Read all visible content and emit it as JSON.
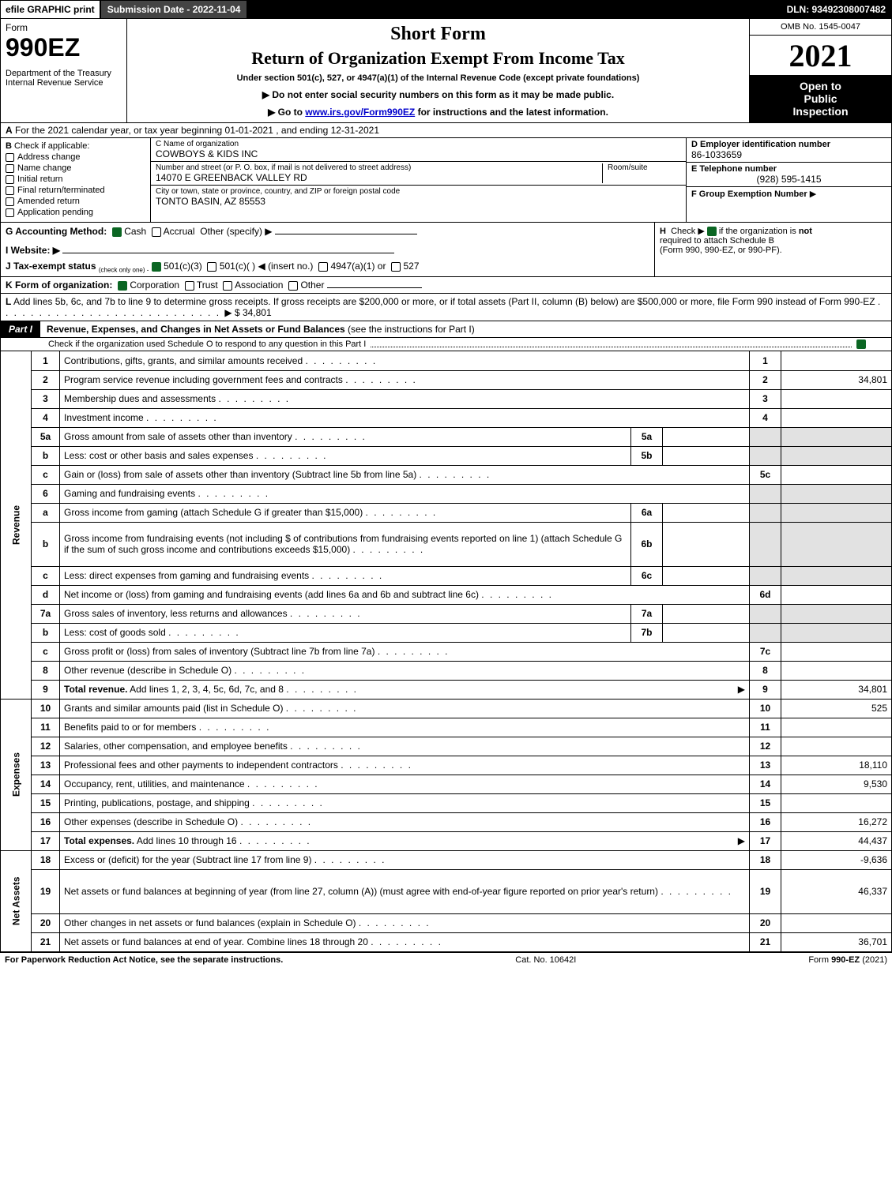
{
  "topbar": {
    "efile": "efile GRAPHIC print",
    "submission": "Submission Date - 2022-11-04",
    "dln": "DLN: 93492308007482"
  },
  "header": {
    "form_word": "Form",
    "form_code": "990EZ",
    "dept1": "Department of the Treasury",
    "dept2": "Internal Revenue Service",
    "short_form": "Short Form",
    "return_title": "Return of Organization Exempt From Income Tax",
    "under_section": "Under section 501(c), 527, or 4947(a)(1) of the Internal Revenue Code (except private foundations)",
    "ssn_line": "▶ Do not enter social security numbers on this form as it may be made public.",
    "goto_pre": "▶ Go to ",
    "goto_link": "www.irs.gov/Form990EZ",
    "goto_post": " for instructions and the latest information.",
    "omb": "OMB No. 1545-0047",
    "year": "2021",
    "open1": "Open to",
    "open2": "Public",
    "open3": "Inspection"
  },
  "lineA": {
    "label": "A",
    "text": "For the 2021 calendar year, or tax year beginning 01-01-2021 , and ending 12-31-2021"
  },
  "colB": {
    "label": "B",
    "check_if": "Check if applicable:",
    "items": [
      "Address change",
      "Name change",
      "Initial return",
      "Final return/terminated",
      "Amended return",
      "Application pending"
    ]
  },
  "colC": {
    "name_label": "C Name of organization",
    "name_val": "COWBOYS & KIDS INC",
    "street_label": "Number and street (or P. O. box, if mail is not delivered to street address)",
    "room_label": "Room/suite",
    "street_val": "14070 E GREENBACK VALLEY RD",
    "city_label": "City or town, state or province, country, and ZIP or foreign postal code",
    "city_val": "TONTO BASIN, AZ  85553"
  },
  "colD": {
    "ein_label": "D Employer identification number",
    "ein_val": "86-1033659",
    "phone_label": "E Telephone number",
    "phone_val": "(928) 595-1415",
    "group_label": "F Group Exemption Number",
    "group_arrow": "▶"
  },
  "gh": {
    "g_label": "G Accounting Method:",
    "g_cash": "Cash",
    "g_accrual": "Accrual",
    "g_other": "Other (specify) ▶",
    "i_label": "I Website: ▶",
    "j_label": "J Tax-exempt status",
    "j_sub": "(check only one) -",
    "j_501c3": "501(c)(3)",
    "j_501c": "501(c)(  ) ◀ (insert no.)",
    "j_4947": "4947(a)(1) or",
    "j_527": "527",
    "h_label": "H",
    "h_text1": "Check ▶",
    "h_text2": "if the organization is",
    "h_not": "not",
    "h_text3": "required to attach Schedule B",
    "h_text4": "(Form 990, 990-EZ, or 990-PF)."
  },
  "rowK": {
    "label": "K Form of organization:",
    "corp": "Corporation",
    "trust": "Trust",
    "assoc": "Association",
    "other": "Other"
  },
  "rowL": {
    "label": "L",
    "text": "Add lines 5b, 6c, and 7b to line 9 to determine gross receipts. If gross receipts are $200,000 or more, or if total assets (Part II, column (B) below) are $500,000 or more, file Form 990 instead of Form 990-EZ",
    "amount": "▶ $ 34,801"
  },
  "part1": {
    "tag": "Part I",
    "title": "Revenue, Expenses, and Changes in Net Assets or Fund Balances",
    "title_note": " (see the instructions for Part I)",
    "sub": "Check if the organization used Schedule O to respond to any question in this Part I"
  },
  "sections": {
    "revenue": "Revenue",
    "expenses": "Expenses",
    "netassets": "Net Assets"
  },
  "lines": [
    {
      "n": "1",
      "desc": "Contributions, gifts, grants, and similar amounts received",
      "num": "1",
      "amt": ""
    },
    {
      "n": "2",
      "desc": "Program service revenue including government fees and contracts",
      "num": "2",
      "amt": "34,801"
    },
    {
      "n": "3",
      "desc": "Membership dues and assessments",
      "num": "3",
      "amt": ""
    },
    {
      "n": "4",
      "desc": "Investment income",
      "num": "4",
      "amt": ""
    },
    {
      "n": "5a",
      "desc": "Gross amount from sale of assets other than inventory",
      "sub": "5a",
      "subamt": "",
      "shaded": true
    },
    {
      "n": "b",
      "desc": "Less: cost or other basis and sales expenses",
      "sub": "5b",
      "subamt": "",
      "shaded": true
    },
    {
      "n": "c",
      "desc": "Gain or (loss) from sale of assets other than inventory (Subtract line 5b from line 5a)",
      "num": "5c",
      "amt": ""
    },
    {
      "n": "6",
      "desc": "Gaming and fundraising events",
      "shaded_full": true
    },
    {
      "n": "a",
      "desc": "Gross income from gaming (attach Schedule G if greater than $15,000)",
      "sub": "6a",
      "subamt": "",
      "shaded": true
    },
    {
      "n": "b",
      "desc": "Gross income from fundraising events (not including $                    of contributions from fundraising events reported on line 1) (attach Schedule G if the sum of such gross income and contributions exceeds $15,000)",
      "sub": "6b",
      "subamt": "",
      "shaded": true,
      "tall": true
    },
    {
      "n": "c",
      "desc": "Less: direct expenses from gaming and fundraising events",
      "sub": "6c",
      "subamt": "",
      "shaded": true
    },
    {
      "n": "d",
      "desc": "Net income or (loss) from gaming and fundraising events (add lines 6a and 6b and subtract line 6c)",
      "num": "6d",
      "amt": ""
    },
    {
      "n": "7a",
      "desc": "Gross sales of inventory, less returns and allowances",
      "sub": "7a",
      "subamt": "",
      "shaded": true
    },
    {
      "n": "b",
      "desc": "Less: cost of goods sold",
      "sub": "7b",
      "subamt": "",
      "shaded": true
    },
    {
      "n": "c",
      "desc": "Gross profit or (loss) from sales of inventory (Subtract line 7b from line 7a)",
      "num": "7c",
      "amt": ""
    },
    {
      "n": "8",
      "desc": "Other revenue (describe in Schedule O)",
      "num": "8",
      "amt": ""
    },
    {
      "n": "9",
      "desc": "Total revenue. Add lines 1, 2, 3, 4, 5c, 6d, 7c, and 8",
      "num": "9",
      "amt": "34,801",
      "bold": true,
      "arrow": true
    }
  ],
  "exp_lines": [
    {
      "n": "10",
      "desc": "Grants and similar amounts paid (list in Schedule O)",
      "num": "10",
      "amt": "525"
    },
    {
      "n": "11",
      "desc": "Benefits paid to or for members",
      "num": "11",
      "amt": ""
    },
    {
      "n": "12",
      "desc": "Salaries, other compensation, and employee benefits",
      "num": "12",
      "amt": ""
    },
    {
      "n": "13",
      "desc": "Professional fees and other payments to independent contractors",
      "num": "13",
      "amt": "18,110"
    },
    {
      "n": "14",
      "desc": "Occupancy, rent, utilities, and maintenance",
      "num": "14",
      "amt": "9,530"
    },
    {
      "n": "15",
      "desc": "Printing, publications, postage, and shipping",
      "num": "15",
      "amt": ""
    },
    {
      "n": "16",
      "desc": "Other expenses (describe in Schedule O)",
      "num": "16",
      "amt": "16,272"
    },
    {
      "n": "17",
      "desc": "Total expenses. Add lines 10 through 16",
      "num": "17",
      "amt": "44,437",
      "bold": true,
      "arrow": true
    }
  ],
  "na_lines": [
    {
      "n": "18",
      "desc": "Excess or (deficit) for the year (Subtract line 17 from line 9)",
      "num": "18",
      "amt": "-9,636"
    },
    {
      "n": "19",
      "desc": "Net assets or fund balances at beginning of year (from line 27, column (A)) (must agree with end-of-year figure reported on prior year's return)",
      "num": "19",
      "amt": "46,337",
      "tall": true
    },
    {
      "n": "20",
      "desc": "Other changes in net assets or fund balances (explain in Schedule O)",
      "num": "20",
      "amt": ""
    },
    {
      "n": "21",
      "desc": "Net assets or fund balances at end of year. Combine lines 18 through 20",
      "num": "21",
      "amt": "36,701"
    }
  ],
  "footer": {
    "left": "For Paperwork Reduction Act Notice, see the separate instructions.",
    "mid": "Cat. No. 10642I",
    "right_pre": "Form ",
    "right_bold": "990-EZ",
    "right_post": " (2021)"
  },
  "colors": {
    "black": "#000000",
    "white": "#ffffff",
    "topbar_mid": "#444444",
    "check_green": "#0b6623",
    "shade": "#e2e2e2",
    "link": "#0000cc"
  }
}
